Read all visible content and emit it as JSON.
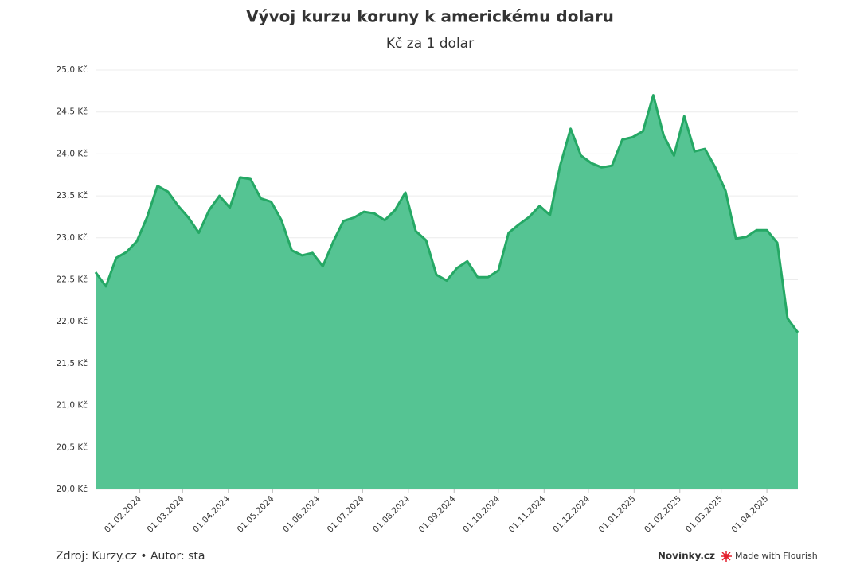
{
  "chart_data": {
    "type": "area",
    "title": "Vývoj kurzu koruny k americkému dolaru",
    "subtitle": "Kč za 1 dolar",
    "source": "Zdroj: Kurzy.cz • Autor: sta",
    "credits": [
      "Novinky.cz",
      "Made with Flourish"
    ],
    "color": "#55c493",
    "line_color": "#25a865",
    "grid": true,
    "x": [
      "02.01.2024",
      "09.01.2024",
      "16.01.2024",
      "23.01.2024",
      "30.01.2024",
      "06.02.2024",
      "13.02.2024",
      "20.02.2024",
      "27.02.2024",
      "05.03.2024",
      "12.03.2024",
      "19.03.2024",
      "26.03.2024",
      "02.04.2024",
      "09.04.2024",
      "16.04.2024",
      "23.04.2024",
      "30.04.2024",
      "07.05.2024",
      "14.05.2024",
      "21.05.2024",
      "28.05.2024",
      "04.06.2024",
      "11.06.2024",
      "18.06.2024",
      "25.06.2024",
      "02.07.2024",
      "09.07.2024",
      "16.07.2024",
      "23.07.2024",
      "30.07.2024",
      "06.08.2024",
      "13.08.2024",
      "20.08.2024",
      "27.08.2024",
      "03.09.2024",
      "10.09.2024",
      "17.09.2024",
      "24.09.2024",
      "01.10.2024",
      "08.10.2024",
      "15.10.2024",
      "22.10.2024",
      "29.10.2024",
      "05.11.2024",
      "12.11.2024",
      "19.11.2024",
      "26.11.2024",
      "03.12.2024",
      "10.12.2024",
      "17.12.2024",
      "24.12.2024",
      "31.12.2024",
      "07.01.2025",
      "14.01.2025",
      "21.01.2025",
      "28.01.2025",
      "04.02.2025",
      "11.02.2025",
      "18.02.2025",
      "25.02.2025",
      "04.03.2025",
      "11.03.2025",
      "18.03.2025",
      "25.03.2025",
      "01.04.2025",
      "08.04.2025",
      "15.04.2025",
      "22.04.2025"
    ],
    "values": [
      22.59,
      22.42,
      22.76,
      22.83,
      22.96,
      23.25,
      23.62,
      23.55,
      23.38,
      23.24,
      23.06,
      23.33,
      23.5,
      23.36,
      23.72,
      23.7,
      23.47,
      23.43,
      23.21,
      22.85,
      22.79,
      22.82,
      22.66,
      22.95,
      23.2,
      23.24,
      23.31,
      23.29,
      23.21,
      23.33,
      23.54,
      23.08,
      22.97,
      22.56,
      22.49,
      22.64,
      22.72,
      22.53,
      22.53,
      22.61,
      23.06,
      23.16,
      23.25,
      23.38,
      23.27,
      23.87,
      24.3,
      23.98,
      23.89,
      23.84,
      23.86,
      24.17,
      24.2,
      24.27,
      24.7,
      24.22,
      23.98,
      24.45,
      24.03,
      24.06,
      23.84,
      23.56,
      22.99,
      23.01,
      23.09,
      23.09,
      22.94,
      22.04,
      21.87
    ],
    "xlim": [
      "02.01.2024",
      "22.04.2025"
    ],
    "xticks": [
      "01.02.2024",
      "01.03.2024",
      "01.04.2024",
      "01.05.2024",
      "01.06.2024",
      "01.07.2024",
      "01.08.2024",
      "01.09.2024",
      "01.10.2024",
      "01.11.2024",
      "01.12.2024",
      "01.01.2025",
      "01.02.2025",
      "01.03.2025",
      "01.04.2025"
    ],
    "ylim": [
      20,
      25
    ],
    "yticks": [
      {
        "value": 20,
        "label": "20,0 Kč"
      },
      {
        "value": 20.5,
        "label": "20,5 Kč"
      },
      {
        "value": 21,
        "label": "21,0 Kč"
      },
      {
        "value": 21.5,
        "label": "21,5 Kč"
      },
      {
        "value": 22,
        "label": "22,0 Kč"
      },
      {
        "value": 22.5,
        "label": "22,5 Kč"
      },
      {
        "value": 23,
        "label": "23,0 Kč"
      },
      {
        "value": 23.5,
        "label": "23,5 Kč"
      },
      {
        "value": 24,
        "label": "24,0 Kč"
      },
      {
        "value": 24.5,
        "label": "24,5 Kč"
      },
      {
        "value": 25,
        "label": "25,0 Kč"
      }
    ]
  }
}
